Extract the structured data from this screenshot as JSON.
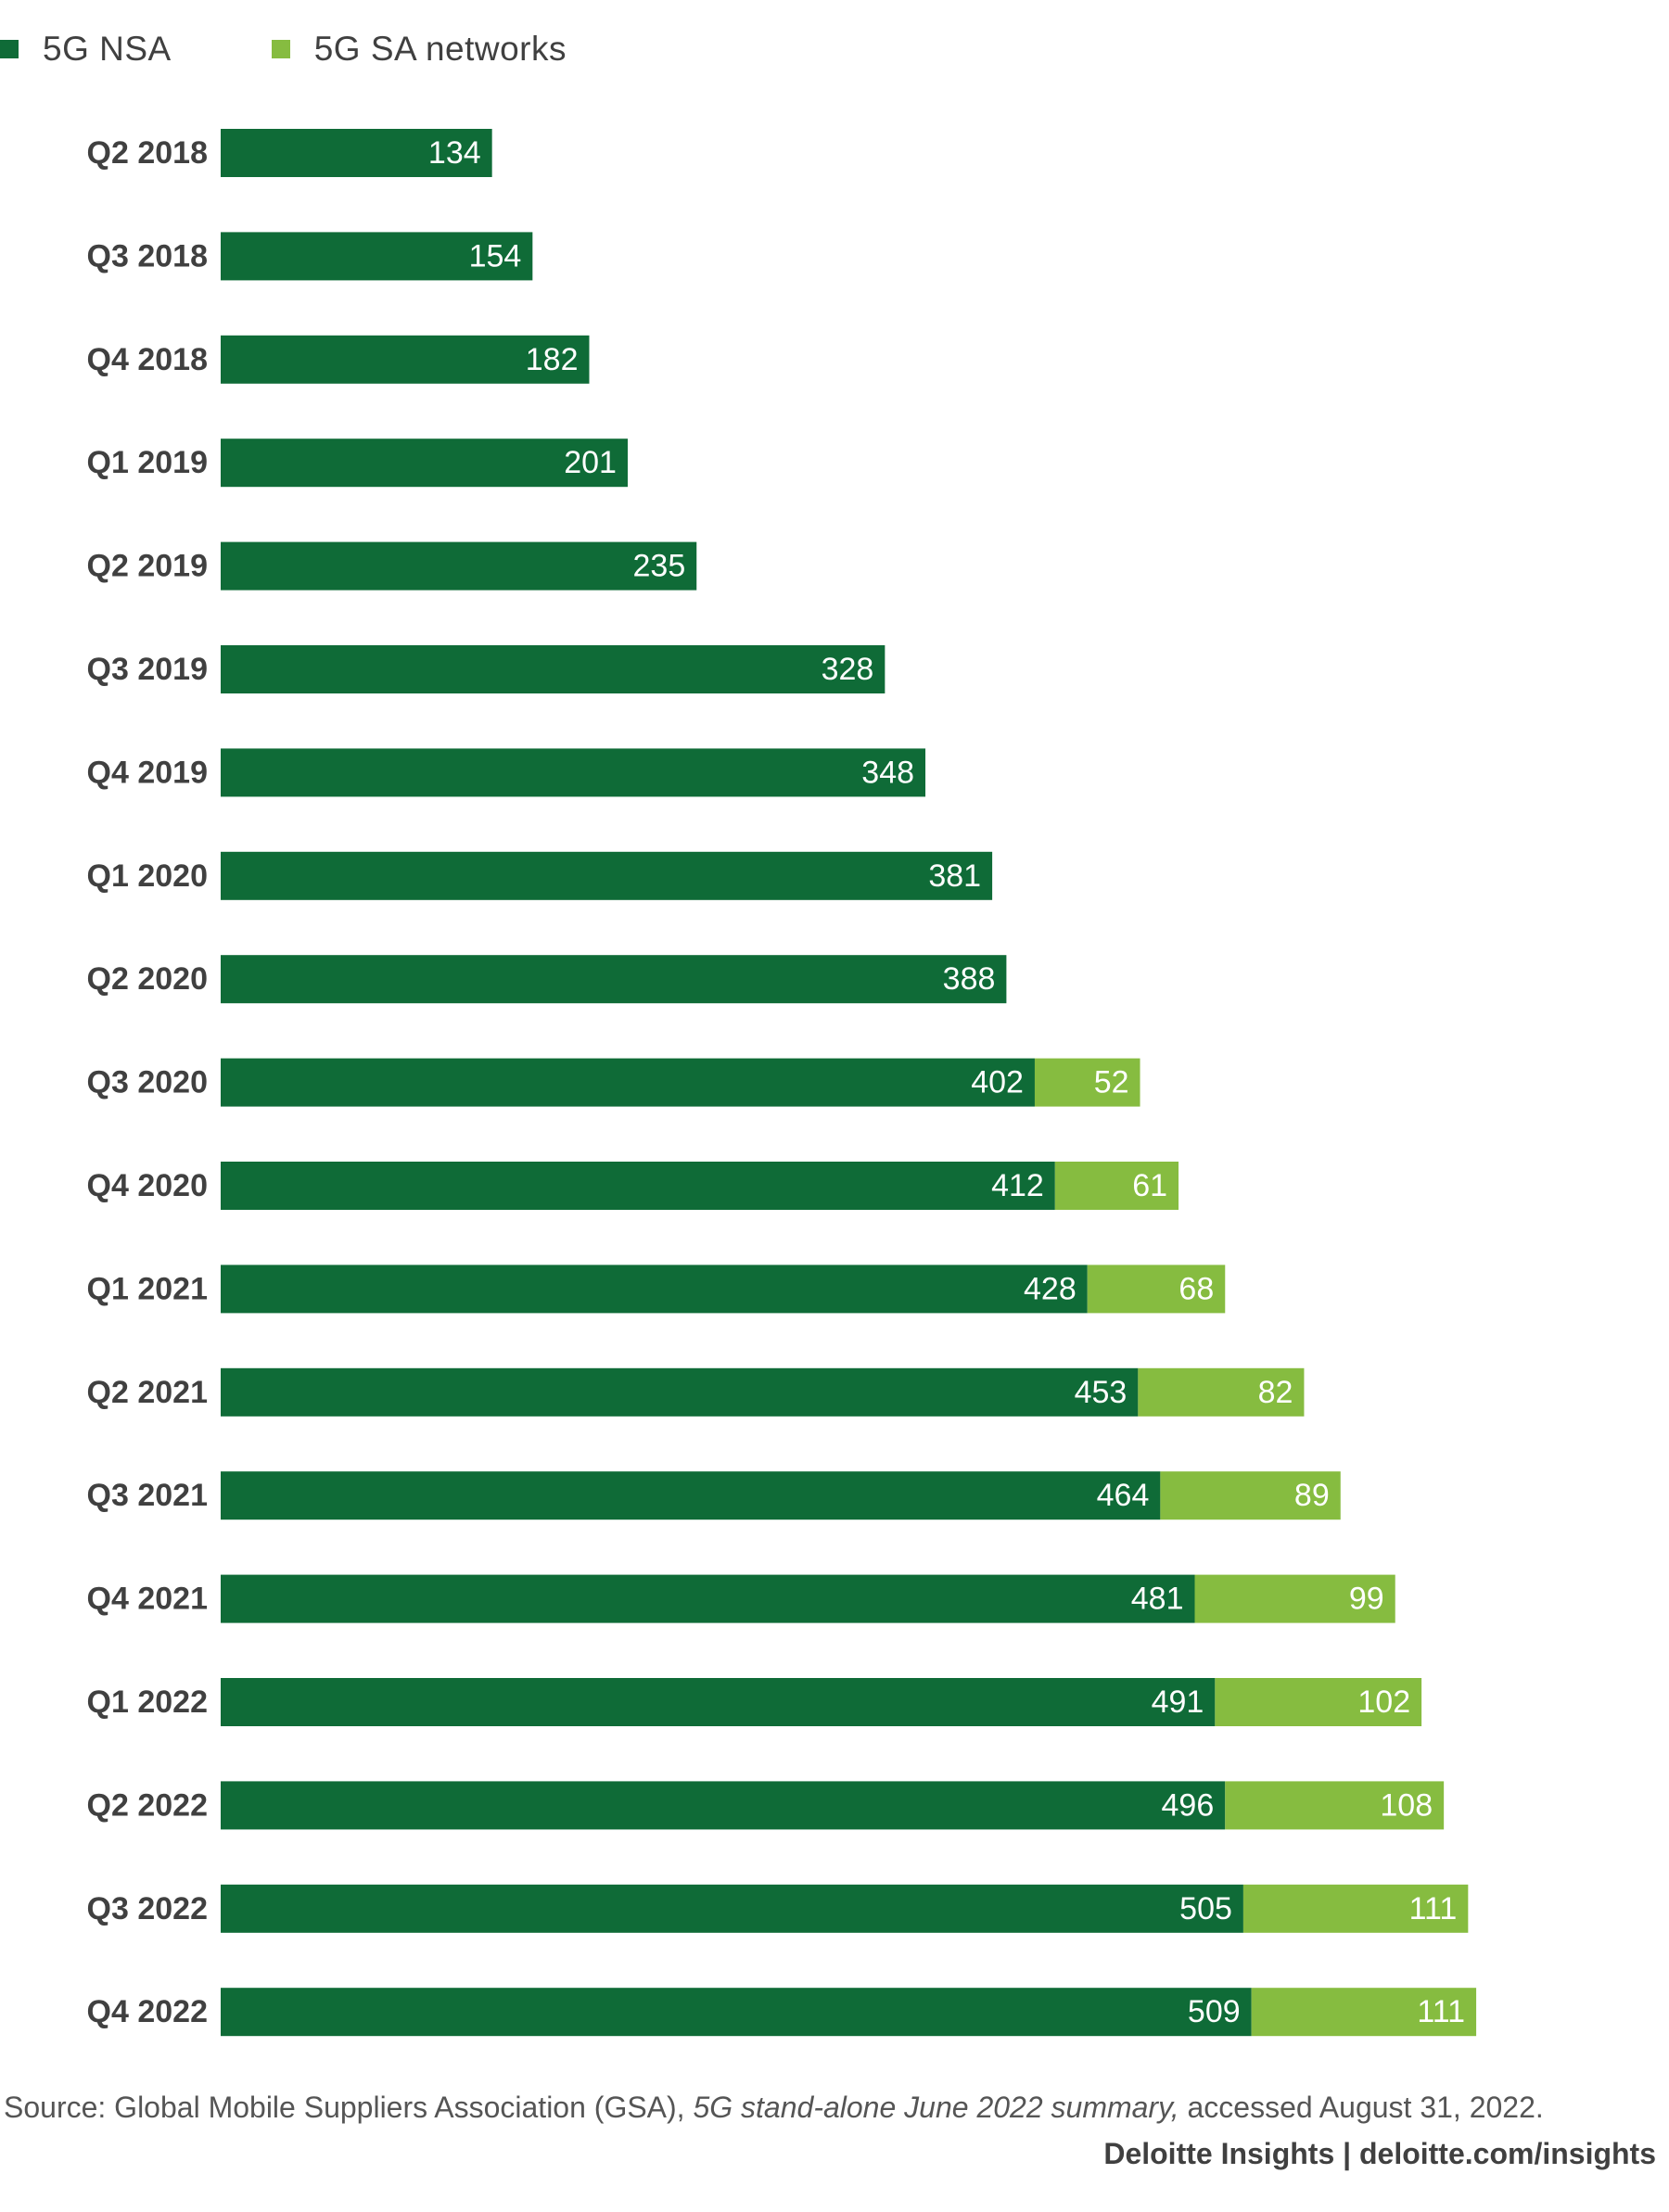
{
  "legend": {
    "nsa_label": "5G NSA",
    "sa_label": "5G SA networks"
  },
  "colors": {
    "nsa": "#0f6b37",
    "sa": "#86bc40",
    "category_text": "#404040",
    "bar_label_text": "#ffffff"
  },
  "source": {
    "prefix": "Source: Global Mobile Suppliers Association (GSA), ",
    "title": "5G stand-alone June 2022 summary,",
    "suffix": " accessed August 31, 2022."
  },
  "credit": "Deloitte Insights | deloitte.com/insights",
  "chart_data": {
    "type": "bar",
    "orientation": "horizontal",
    "stacked": true,
    "categories": [
      "Q2 2018",
      "Q3 2018",
      "Q4 2018",
      "Q1 2019",
      "Q2 2019",
      "Q3 2019",
      "Q4 2019",
      "Q1 2020",
      "Q2 2020",
      "Q3 2020",
      "Q4 2020",
      "Q1 2021",
      "Q2 2021",
      "Q3 2021",
      "Q4 2021",
      "Q1 2022",
      "Q2 2022",
      "Q3 2022",
      "Q4 2022"
    ],
    "series": [
      {
        "name": "5G NSA",
        "values": [
          134,
          154,
          182,
          201,
          235,
          328,
          348,
          381,
          388,
          402,
          412,
          428,
          453,
          464,
          481,
          491,
          496,
          505,
          509
        ]
      },
      {
        "name": "5G SA networks",
        "values": [
          null,
          null,
          null,
          null,
          null,
          null,
          null,
          null,
          null,
          52,
          61,
          68,
          82,
          89,
          99,
          102,
          108,
          111,
          111
        ]
      }
    ],
    "data_labels": true,
    "gridlines": false,
    "legend_position": "top-left"
  }
}
